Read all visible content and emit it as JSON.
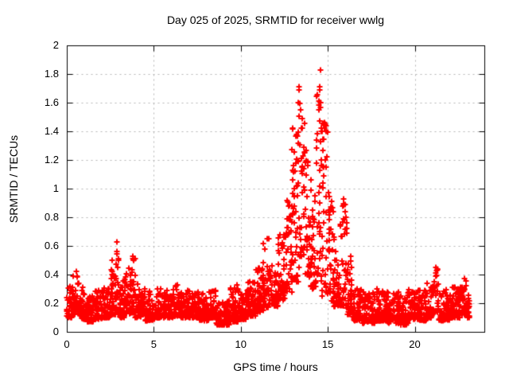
{
  "chart_data": {
    "type": "scatter",
    "title": "Day 025 of 2025, SRMTID for receiver wwlg",
    "xlabel": "GPS time / hours",
    "ylabel": "SRMTID / TECUs",
    "xlim": [
      0,
      24
    ],
    "ylim": [
      0,
      2
    ],
    "x_tick_values": [
      0,
      5,
      10,
      15,
      20
    ],
    "x_tick_labels": [
      "0",
      "5",
      "10",
      "15",
      "20"
    ],
    "y_tick_values": [
      0,
      0.2,
      0.4,
      0.6,
      0.8,
      1,
      1.2,
      1.4,
      1.6,
      1.8,
      2
    ],
    "y_tick_labels": [
      "0",
      "0.2",
      "0.4",
      "0.6",
      "0.8",
      "1",
      "1.2",
      "1.4",
      "1.6",
      "1.8",
      "2"
    ],
    "grid": true,
    "legend": false,
    "marker": "plus",
    "marker_color": "#ff0000",
    "grid_color": "#b4b4b4",
    "axis_color": "#000000",
    "envelope_bins": [
      [
        0.0,
        0.3,
        0.1,
        0.33,
        35
      ],
      [
        0.3,
        0.8,
        0.12,
        0.42,
        55
      ],
      [
        0.8,
        1.15,
        0.09,
        0.32,
        40
      ],
      [
        1.15,
        1.6,
        0.07,
        0.26,
        50
      ],
      [
        1.6,
        2.1,
        0.09,
        0.29,
        55
      ],
      [
        2.1,
        2.55,
        0.1,
        0.32,
        50
      ],
      [
        2.55,
        2.8,
        0.12,
        0.5,
        30
      ],
      [
        2.8,
        3.0,
        0.12,
        0.63,
        25
      ],
      [
        3.0,
        3.35,
        0.1,
        0.37,
        40
      ],
      [
        3.35,
        3.7,
        0.13,
        0.48,
        40
      ],
      [
        3.7,
        3.95,
        0.13,
        0.53,
        30
      ],
      [
        3.95,
        4.5,
        0.1,
        0.34,
        60
      ],
      [
        4.5,
        5.05,
        0.08,
        0.29,
        60
      ],
      [
        5.05,
        5.6,
        0.1,
        0.31,
        60
      ],
      [
        5.6,
        6.1,
        0.1,
        0.29,
        55
      ],
      [
        6.1,
        6.55,
        0.11,
        0.33,
        50
      ],
      [
        6.55,
        7.1,
        0.1,
        0.3,
        60
      ],
      [
        7.1,
        7.65,
        0.1,
        0.28,
        60
      ],
      [
        7.65,
        8.15,
        0.08,
        0.27,
        55
      ],
      [
        8.15,
        8.6,
        0.1,
        0.31,
        50
      ],
      [
        8.6,
        9.35,
        0.05,
        0.22,
        80
      ],
      [
        9.35,
        9.85,
        0.07,
        0.31,
        55
      ],
      [
        9.85,
        10.35,
        0.09,
        0.29,
        55
      ],
      [
        10.35,
        10.85,
        0.11,
        0.36,
        55
      ],
      [
        10.85,
        11.3,
        0.14,
        0.45,
        50
      ],
      [
        11.3,
        11.7,
        0.17,
        0.65,
        42
      ],
      [
        11.7,
        12.15,
        0.18,
        0.52,
        45
      ],
      [
        12.15,
        12.55,
        0.22,
        0.7,
        42
      ],
      [
        12.55,
        12.95,
        0.28,
        0.92,
        42
      ],
      [
        12.95,
        13.3,
        0.35,
        1.45,
        40
      ],
      [
        13.3,
        13.65,
        0.45,
        1.72,
        40
      ],
      [
        13.65,
        14.0,
        0.38,
        1.28,
        38
      ],
      [
        14.0,
        14.35,
        0.3,
        1.08,
        38
      ],
      [
        14.35,
        14.65,
        0.35,
        1.83,
        36
      ],
      [
        14.65,
        15.0,
        0.25,
        1.5,
        36
      ],
      [
        15.0,
        15.35,
        0.2,
        0.97,
        38
      ],
      [
        15.35,
        15.7,
        0.18,
        0.62,
        38
      ],
      [
        15.7,
        16.1,
        0.18,
        0.95,
        42
      ],
      [
        16.1,
        16.45,
        0.12,
        0.57,
        38
      ],
      [
        16.45,
        17.0,
        0.08,
        0.3,
        60
      ],
      [
        17.0,
        17.7,
        0.06,
        0.28,
        75
      ],
      [
        17.7,
        18.4,
        0.08,
        0.31,
        75
      ],
      [
        18.4,
        19.1,
        0.06,
        0.28,
        75
      ],
      [
        19.1,
        19.6,
        0.05,
        0.25,
        55
      ],
      [
        19.6,
        20.1,
        0.09,
        0.3,
        55
      ],
      [
        20.1,
        20.7,
        0.08,
        0.3,
        65
      ],
      [
        20.7,
        21.05,
        0.1,
        0.34,
        38
      ],
      [
        21.05,
        21.35,
        0.14,
        0.46,
        32
      ],
      [
        21.35,
        22.0,
        0.08,
        0.3,
        70
      ],
      [
        22.0,
        22.6,
        0.1,
        0.32,
        65
      ],
      [
        22.6,
        23.0,
        0.12,
        0.37,
        45
      ],
      [
        23.0,
        23.15,
        0.1,
        0.26,
        18
      ]
    ],
    "outlier_points": [
      [
        14.57,
        1.83
      ],
      [
        14.55,
        1.69
      ],
      [
        14.57,
        1.6
      ],
      [
        14.52,
        1.47
      ],
      [
        14.62,
        1.42
      ],
      [
        13.33,
        1.71
      ],
      [
        13.3,
        1.6
      ],
      [
        13.45,
        1.55
      ],
      [
        13.5,
        1.42
      ],
      [
        13.22,
        1.38
      ],
      [
        14.85,
        1.45
      ],
      [
        14.9,
        1.4
      ],
      [
        15.02,
        0.97
      ],
      [
        15.92,
        0.93
      ],
      [
        15.88,
        0.88
      ],
      [
        11.62,
        0.65
      ],
      [
        2.86,
        0.63
      ],
      [
        2.9,
        0.56
      ],
      [
        3.8,
        0.53
      ],
      [
        3.85,
        0.5
      ],
      [
        21.2,
        0.45
      ],
      [
        21.22,
        0.41
      ],
      [
        9.8,
        0.33
      ],
      [
        6.35,
        0.33
      ],
      [
        0.55,
        0.42
      ],
      [
        0.6,
        0.39
      ],
      [
        22.85,
        0.37
      ]
    ]
  }
}
